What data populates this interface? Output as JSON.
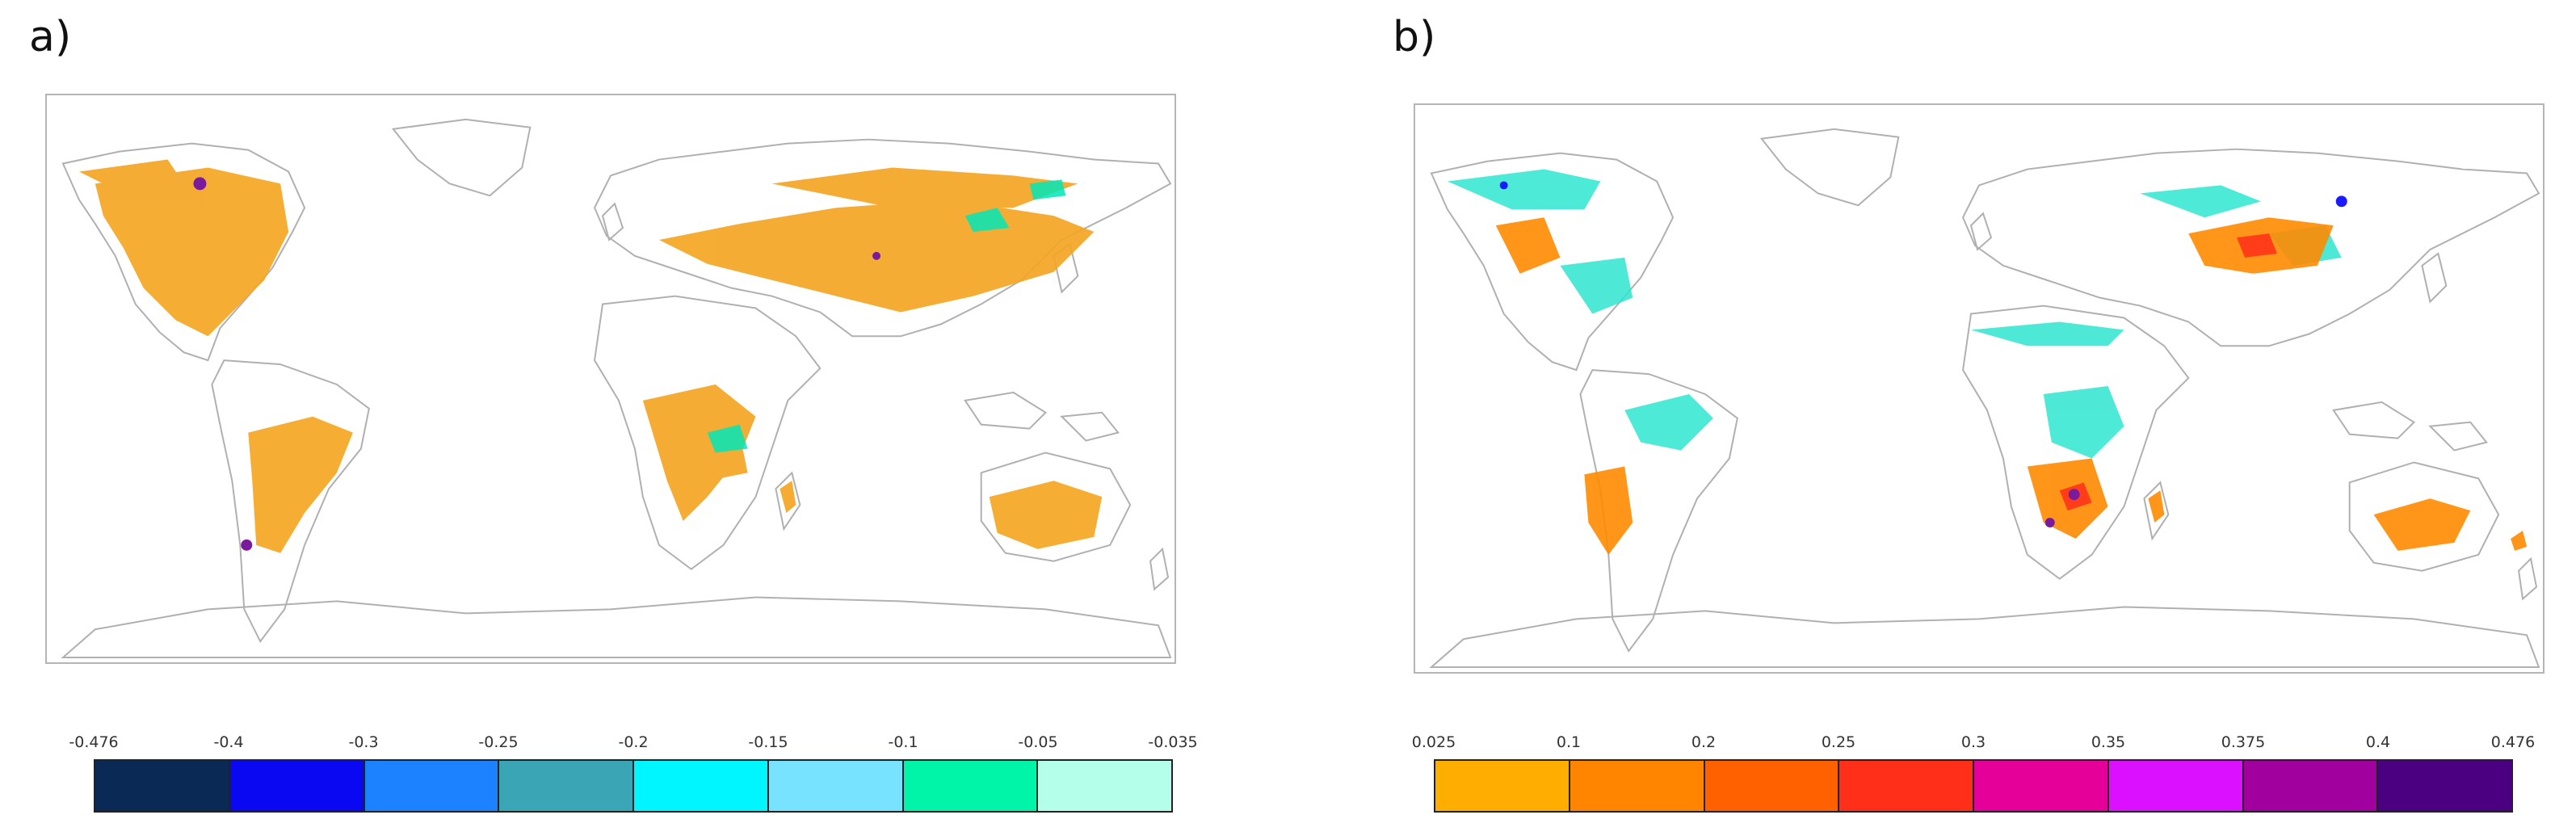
{
  "panels": [
    {
      "label": "a)",
      "colorbar": {
        "ticks": [
          "-0.476",
          "-0.4",
          "-0.3",
          "-0.25",
          "-0.2",
          "-0.15",
          "-0.1",
          "-0.05",
          "-0.035"
        ],
        "colors": [
          "#0a2a55",
          "#0a07f2",
          "#1c82ff",
          "#3aa5b4",
          "#00f6ff",
          "#78e3ff",
          "#00f5a8",
          "#b3ffe9"
        ]
      },
      "dominant_color": "#f5a623"
    },
    {
      "label": "b)",
      "colorbar": {
        "ticks": [
          "0.025",
          "0.1",
          "0.2",
          "0.25",
          "0.3",
          "0.35",
          "0.375",
          "0.4",
          "0.476"
        ],
        "colors": [
          "#ffad00",
          "#ff8500",
          "#ff6100",
          "#ff2f1a",
          "#e5009a",
          "#db10ff",
          "#a1009e",
          "#4b0082"
        ]
      },
      "dominant_color": "#2ee6d0"
    }
  ]
}
